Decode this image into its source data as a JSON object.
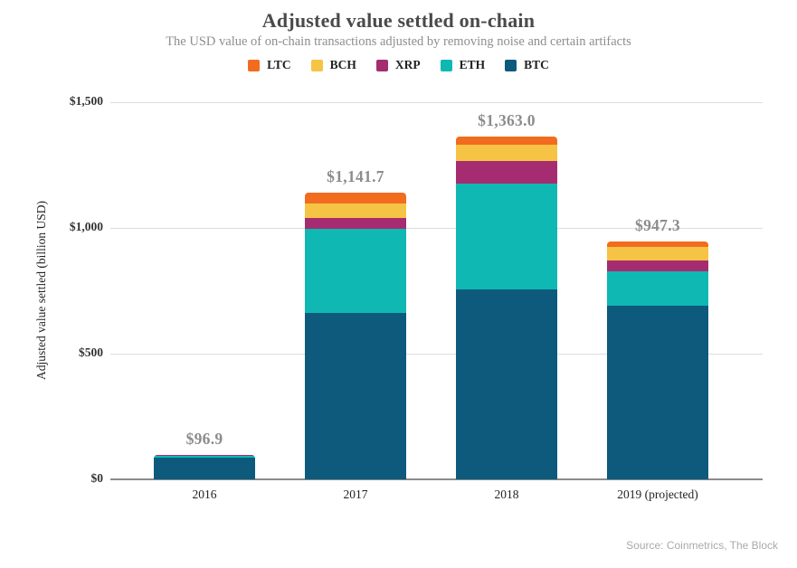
{
  "header": {
    "title": "Adjusted value settled on-chain",
    "subtitle": "The USD value of on-chain transactions adjusted by removing noise and certain artifacts"
  },
  "source": "Source: Coinmetrics, The Block",
  "colors": {
    "LTC": "#F26C1F",
    "BCH": "#F6C444",
    "XRP": "#A62C71",
    "ETH": "#0FB8B2",
    "BTC": "#0D5A7D",
    "gridline": "#DDDDDD",
    "axis": "#8C8C8C",
    "title_text": "#4A4A4A",
    "subtitle_text": "#8E8E8E",
    "value_label_text": "#8C8C8C"
  },
  "chart_data": {
    "type": "bar",
    "stacked": true,
    "title": "Adjusted value settled on-chain",
    "subtitle": "The USD value of on-chain transactions adjusted by removing noise and certain artifacts",
    "categories": [
      "2016",
      "2017",
      "2018",
      "2019 (projected)"
    ],
    "series": [
      {
        "name": "LTC",
        "color": "#F26C1F",
        "values": [
          0.7,
          46.0,
          33.0,
          21.3
        ]
      },
      {
        "name": "BCH",
        "color": "#F6C444",
        "values": [
          0.7,
          57.0,
          64.0,
          54.0
        ]
      },
      {
        "name": "XRP",
        "color": "#A62C71",
        "values": [
          2.0,
          43.0,
          89.0,
          46.0
        ]
      },
      {
        "name": "ETH",
        "color": "#0FB8B2",
        "values": [
          7.5,
          333.0,
          422.0,
          136.0
        ]
      },
      {
        "name": "BTC",
        "color": "#0D5A7D",
        "values": [
          86.0,
          662.7,
          755.0,
          690.0
        ]
      }
    ],
    "totals": [
      96.9,
      1141.7,
      1363.0,
      947.3
    ],
    "total_labels": [
      "$96.9",
      "$1,141.7",
      "$1,363.0",
      "$947.3"
    ],
    "xlabel": "",
    "ylabel": "Adjusted value settled (billion USD)",
    "ylim": [
      0,
      1500
    ],
    "yticks": [
      0,
      500,
      1000,
      1500
    ],
    "ytick_labels": [
      "$0",
      "$500",
      "$1,000",
      "$1,500"
    ],
    "legend": [
      "LTC",
      "BCH",
      "XRP",
      "ETH",
      "BTC"
    ],
    "legend_position": "top",
    "grid": true
  }
}
